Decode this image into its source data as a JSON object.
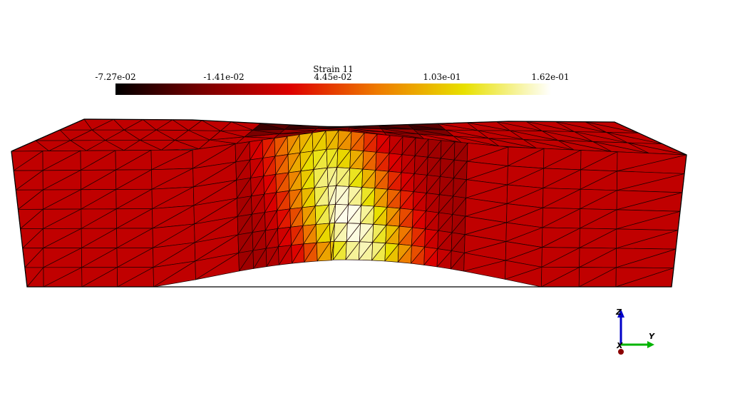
{
  "colorbar": {
    "title": "Strain 11",
    "ticks": [
      "-7.27e-02",
      "-1.41e-02",
      "4.45e-02",
      "1.03e-01",
      "1.62e-01"
    ],
    "min": -0.0727,
    "max": 0.162,
    "colors": [
      "#000000",
      "#7a0000",
      "#dd0000",
      "#ee7a00",
      "#e8e000",
      "#ffffff"
    ]
  },
  "axes": {
    "z_label": "Z",
    "y_label": "Y",
    "x_label": "X",
    "z_color": "#0000c8",
    "y_color": "#00b400",
    "x_color": "#8b0000"
  },
  "specimen": {
    "base_color": "#c00000",
    "edge_color": "#1a0000"
  }
}
